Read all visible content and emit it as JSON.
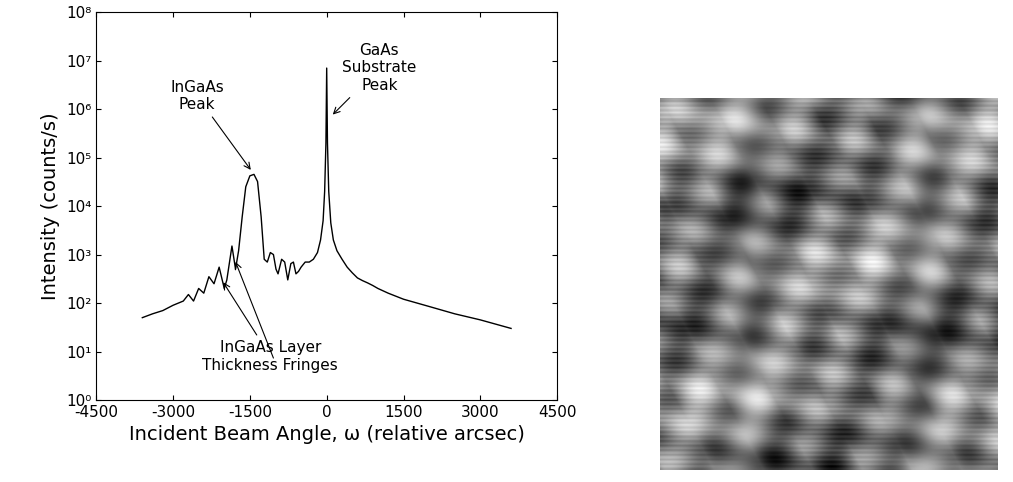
{
  "chart_data": {
    "type": "line",
    "x_label": "Incident Beam Angle, ω (relative arcsec)",
    "y_label": "Intensity (counts/s)",
    "log": "y",
    "color": "#000000",
    "xlim": [
      -4500,
      4500
    ],
    "xticks": [
      -4500,
      -3000,
      -1500,
      0,
      1500,
      3000,
      4500
    ],
    "ylim": [
      1,
      100000000
    ],
    "yticks": [
      {
        "value": 1,
        "label": "10⁰"
      },
      {
        "value": 10,
        "label": "10¹"
      },
      {
        "value": 100,
        "label": "10²"
      },
      {
        "value": 1000,
        "label": "10³"
      },
      {
        "value": 10000,
        "label": "10⁴"
      },
      {
        "value": 100000,
        "label": "10⁵"
      },
      {
        "value": 1000000,
        "label": "10⁶"
      },
      {
        "value": 10000000,
        "label": "10⁷"
      },
      {
        "value": 100000000,
        "label": "10⁸"
      }
    ],
    "x": [
      -3600,
      -3400,
      -3200,
      -3000,
      -2800,
      -2700,
      -2600,
      -2500,
      -2400,
      -2300,
      -2200,
      -2100,
      -2000,
      -1950,
      -1850,
      -1780,
      -1720,
      -1650,
      -1580,
      -1500,
      -1420,
      -1350,
      -1280,
      -1220,
      -1160,
      -1100,
      -1040,
      -990,
      -950,
      -880,
      -820,
      -760,
      -700,
      -650,
      -600,
      -550,
      -500,
      -420,
      -340,
      -260,
      -180,
      -120,
      -70,
      -40,
      -15,
      0,
      15,
      40,
      80,
      130,
      200,
      300,
      400,
      500,
      600,
      700,
      800,
      900,
      1000,
      1200,
      1500,
      2000,
      2500,
      3000,
      3600
    ],
    "values": [
      50,
      60,
      70,
      90,
      110,
      150,
      110,
      200,
      160,
      350,
      250,
      550,
      200,
      300,
      1500,
      500,
      1200,
      6000,
      25000,
      42000,
      45000,
      32000,
      6000,
      800,
      700,
      1100,
      1000,
      500,
      400,
      800,
      700,
      300,
      650,
      700,
      400,
      450,
      550,
      700,
      700,
      800,
      1100,
      2000,
      5000,
      20000,
      200000,
      7000000,
      200000,
      20000,
      4500,
      2000,
      1200,
      800,
      550,
      420,
      330,
      290,
      260,
      230,
      200,
      160,
      120,
      85,
      60,
      45,
      30
    ],
    "annotations": [
      {
        "text": "InGaAs\nPeak",
        "points": [
          [
            -1450,
            50000
          ]
        ]
      },
      {
        "text": "GaAs\nSubstrate\nPeak",
        "points": [
          [
            80,
            700000
          ]
        ]
      },
      {
        "text": "InGaAs Layer\nThickness Fringes",
        "points": [
          [
            -2050,
            300
          ],
          [
            -1800,
            800
          ]
        ]
      }
    ]
  }
}
